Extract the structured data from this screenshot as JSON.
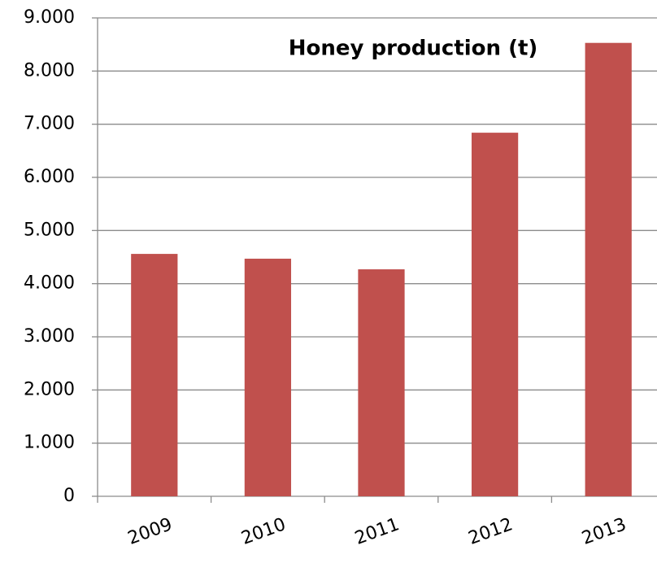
{
  "chart_data": {
    "type": "bar",
    "title": "Honey production   (t)",
    "categories": [
      "2009",
      "2010",
      "2011",
      "2012",
      "2013"
    ],
    "values": [
      4560,
      4470,
      4270,
      6840,
      8530
    ],
    "color": "#c0504d",
    "ylim": [
      0,
      9000
    ],
    "yticks": [
      0,
      {
        "value": 1000,
        "label": "1.000"
      },
      {
        "value": 2000,
        "label": "2.000"
      },
      {
        "value": 3000,
        "label": "3.000"
      },
      {
        "value": 4000,
        "label": "4.000"
      },
      {
        "value": 5000,
        "label": "5.000"
      },
      {
        "value": 6000,
        "label": "6.000"
      },
      {
        "value": 7000,
        "label": "7.000"
      },
      {
        "value": 8000,
        "label": "8.000"
      },
      {
        "value": 9000,
        "label": "9.000"
      }
    ],
    "grid": true
  }
}
